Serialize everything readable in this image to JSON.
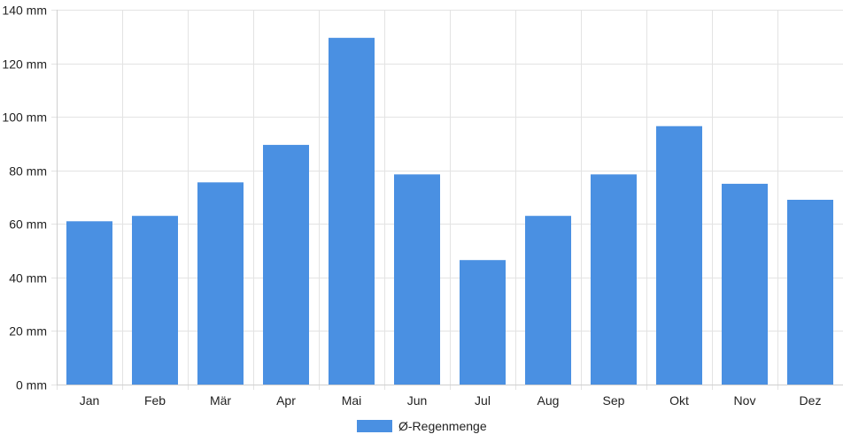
{
  "chart_data": {
    "type": "bar",
    "categories": [
      "Jan",
      "Feb",
      "Mär",
      "Apr",
      "Mai",
      "Jun",
      "Jul",
      "Aug",
      "Sep",
      "Okt",
      "Nov",
      "Dez"
    ],
    "series": [
      {
        "name": "Ø-Regenmenge",
        "color": "#4a90e2",
        "values": [
          61,
          63,
          75.5,
          89.5,
          129.5,
          78.5,
          46.5,
          63,
          78.5,
          96.5,
          75,
          69
        ]
      }
    ],
    "y_ticks": [
      0,
      20,
      40,
      60,
      80,
      100,
      120,
      140
    ],
    "y_unit": "mm",
    "ylim": [
      0,
      140
    ],
    "grid": true,
    "legend_position": "bottom-center",
    "title": "",
    "xlabel": "",
    "ylabel": ""
  }
}
